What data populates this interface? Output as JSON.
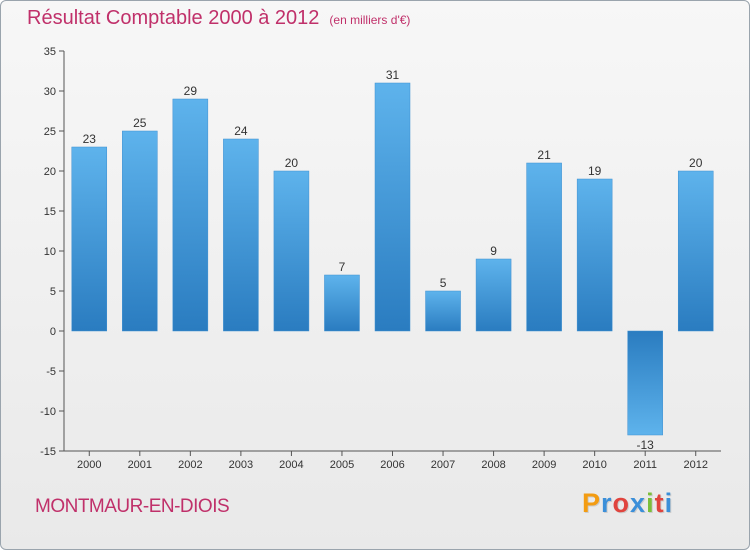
{
  "chart_data": {
    "type": "bar",
    "title": "Résultat Comptable 2000 à 2012",
    "subtitle": "(en milliers d'€)",
    "categories": [
      "2000",
      "2001",
      "2002",
      "2003",
      "2004",
      "2005",
      "2006",
      "2007",
      "2008",
      "2009",
      "2010",
      "2011",
      "2012"
    ],
    "values": [
      23,
      25,
      29,
      24,
      20,
      7,
      31,
      5,
      9,
      21,
      19,
      -13,
      20
    ],
    "ylim": [
      -15,
      35
    ],
    "yticks": [
      -15,
      -10,
      -5,
      0,
      5,
      10,
      15,
      20,
      25,
      30,
      35
    ],
    "xlabel": "",
    "ylabel": "",
    "grid": false,
    "legend": "none"
  },
  "footer": {
    "city": "MONTMAUR-EN-DIOIS",
    "logo_letters": [
      "P",
      "r",
      "o",
      "x",
      "i",
      "t",
      "i"
    ],
    "logo_colors": [
      "#f39c12",
      "#3b8fd9",
      "#e0443e",
      "#3b8fd9",
      "#7bbf3a",
      "#e0443e",
      "#3b8fd9"
    ]
  },
  "colors": {
    "title": "#c0306a",
    "bar_light": "#5eb3ec",
    "bar_dark": "#2a7cc0"
  }
}
